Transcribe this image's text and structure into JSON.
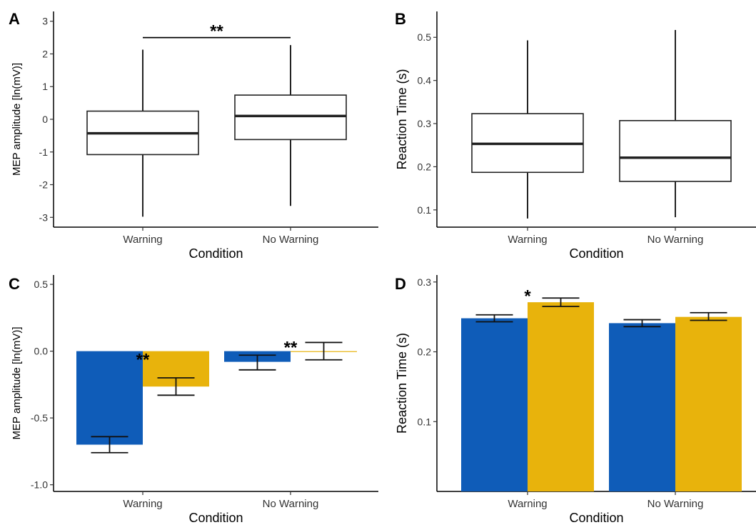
{
  "chart_data": [
    {
      "panel": "A",
      "type": "box",
      "ylabel": "MEP amplitude [ln(mV)]",
      "xlabel": "Condition",
      "categories": [
        "Warning",
        "No Warning"
      ],
      "ylim": [
        -3.3,
        3.3
      ],
      "yticks": [
        -3,
        -2,
        -1,
        0,
        1,
        2,
        3
      ],
      "ytick_labels": [
        "-3",
        "-2",
        "-1",
        "0",
        "1",
        "2",
        "3"
      ],
      "boxes": [
        {
          "category": "Warning",
          "min": -2.98,
          "q1": -1.08,
          "median": -0.43,
          "q3": 0.25,
          "max": 2.13
        },
        {
          "category": "No Warning",
          "min": -2.65,
          "q1": -0.62,
          "median": 0.1,
          "q3": 0.74,
          "max": 2.27
        }
      ],
      "annotations": [
        {
          "text": "**",
          "between": [
            "Warning",
            "No Warning"
          ],
          "y": 2.5
        }
      ]
    },
    {
      "panel": "B",
      "type": "box",
      "ylabel": "Reaction Time (s)",
      "xlabel": "Condition",
      "categories": [
        "Warning",
        "No Warning"
      ],
      "ylim": [
        0.06,
        0.56
      ],
      "yticks": [
        0.1,
        0.2,
        0.3,
        0.4,
        0.5
      ],
      "ytick_labels": [
        "0.1",
        "0.2",
        "0.3",
        "0.4",
        "0.5"
      ],
      "boxes": [
        {
          "category": "Warning",
          "min": 0.08,
          "q1": 0.187,
          "median": 0.253,
          "q3": 0.323,
          "max": 0.493
        },
        {
          "category": "No Warning",
          "min": 0.083,
          "q1": 0.166,
          "median": 0.221,
          "q3": 0.307,
          "max": 0.517
        }
      ],
      "annotations": []
    },
    {
      "panel": "C",
      "type": "bar",
      "ylabel": "MEP amplitude [ln(mV)]",
      "xlabel": "Condition",
      "categories": [
        "Warning",
        "No Warning"
      ],
      "ylim": [
        -1.05,
        0.57
      ],
      "yticks": [
        -1.0,
        -0.5,
        0.0,
        0.5
      ],
      "ytick_labels": [
        "-1.0",
        "-0.5",
        "0.0",
        "0.5"
      ],
      "series": [
        {
          "color": "#0F5CB8",
          "values": [
            -0.7,
            -0.08
          ],
          "err_low": [
            -0.76,
            -0.14
          ],
          "err_high": [
            -0.64,
            -0.03
          ]
        },
        {
          "color": "#E8B30C",
          "values": [
            -0.265,
            0.0
          ],
          "err_low": [
            -0.33,
            -0.065
          ],
          "err_high": [
            -0.2,
            0.065
          ]
        }
      ],
      "annotations": [
        {
          "text": "**",
          "category": "Warning",
          "y": -0.02
        },
        {
          "text": "**",
          "category": "No Warning",
          "y": 0.07
        }
      ]
    },
    {
      "panel": "D",
      "type": "bar",
      "ylabel": "Reaction Time (s)",
      "xlabel": "Condition",
      "categories": [
        "Warning",
        "No Warning"
      ],
      "ylim": [
        0.0,
        0.31
      ],
      "yticks": [
        0.1,
        0.2,
        0.3
      ],
      "ytick_labels": [
        "0.1",
        "0.2",
        "0.3"
      ],
      "series": [
        {
          "color": "#0F5CB8",
          "values": [
            0.248,
            0.241
          ],
          "err_low": [
            0.243,
            0.236
          ],
          "err_high": [
            0.253,
            0.246
          ]
        },
        {
          "color": "#E8B30C",
          "values": [
            0.271,
            0.25
          ],
          "err_low": [
            0.265,
            0.245
          ],
          "err_high": [
            0.277,
            0.256
          ]
        }
      ],
      "annotations": [
        {
          "text": "*",
          "category": "Warning",
          "y": 0.288
        }
      ]
    }
  ]
}
